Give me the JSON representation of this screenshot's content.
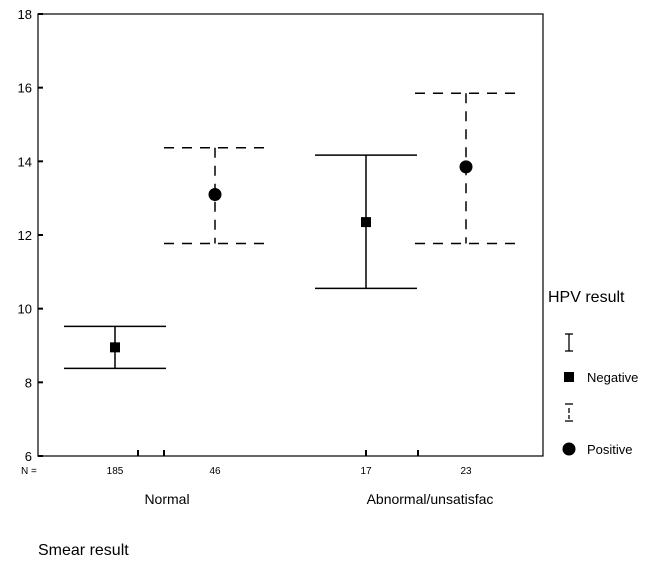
{
  "chart_data": {
    "type": "errorbar",
    "xlabel": "Smear result",
    "ylabel": "",
    "ylim": [
      6,
      18
    ],
    "yticks": [
      6,
      8,
      10,
      12,
      14,
      16,
      18
    ],
    "categories": [
      "Normal",
      "Abnormal/unsatisfac"
    ],
    "n_label": "N =",
    "legend": {
      "title": "HPV result",
      "placement": "right",
      "entries": [
        "Negative",
        "Positive"
      ]
    },
    "series": [
      {
        "name": "Negative",
        "marker": "square",
        "line": "solid",
        "n": [
          "185",
          "17"
        ],
        "mean": [
          8.95,
          12.35
        ],
        "lower": [
          8.38,
          10.55
        ],
        "upper": [
          9.52,
          14.17
        ]
      },
      {
        "name": "Positive",
        "marker": "circle",
        "line": "dashed",
        "n": [
          "46",
          "23"
        ],
        "mean": [
          13.1,
          13.85
        ],
        "lower": [
          11.77,
          11.77
        ],
        "upper": [
          14.37,
          15.85
        ]
      }
    ]
  }
}
